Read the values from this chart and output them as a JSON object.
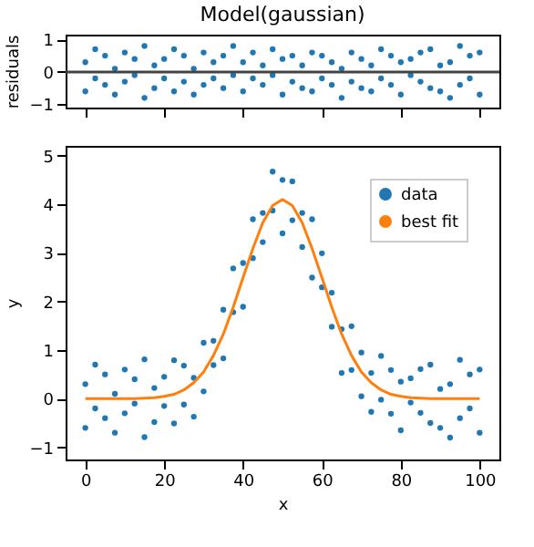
{
  "chart_data": [
    {
      "type": "scatter",
      "title": "Model(gaussian)",
      "ylabel": "residuals",
      "marker": "circle",
      "grid": false,
      "tick_labels": "y",
      "x": [
        0,
        0,
        2.5,
        2.5,
        5,
        5,
        7.5,
        7.5,
        10,
        10,
        12.5,
        12.5,
        15,
        15,
        17.5,
        17.5,
        20,
        20,
        22.5,
        22.5,
        25,
        25,
        27.5,
        27.5,
        30,
        30,
        32.5,
        32.5,
        35,
        35,
        37.5,
        37.5,
        40,
        40,
        42.5,
        42.5,
        45,
        45,
        47.5,
        47.5,
        50,
        50,
        52.5,
        52.5,
        55,
        55,
        57.5,
        57.5,
        60,
        60,
        62.5,
        62.5,
        65,
        65,
        67.5,
        67.5,
        70,
        70,
        72.5,
        72.5,
        75,
        75,
        77.5,
        77.5,
        80,
        80,
        82.5,
        82.5,
        85,
        85,
        87.5,
        87.5,
        90,
        90,
        92.5,
        92.5,
        95,
        95,
        97.5,
        97.5,
        100,
        100
      ],
      "series": [
        {
          "color": "#1f77b4",
          "values": [
            0.3,
            -0.6,
            -0.2,
            0.7,
            0.5,
            -0.4,
            -0.7,
            0.1,
            0.6,
            -0.3,
            -0.1,
            0.4,
            0.8,
            -0.8,
            -0.5,
            0.2,
            0.4,
            -0.2,
            0.7,
            -0.6,
            -0.3,
            0.5,
            0.1,
            -0.7,
            0.6,
            -0.4,
            -0.2,
            0.3,
            0.5,
            -0.5,
            -0.1,
            0.8,
            0.3,
            -0.6,
            0.6,
            -0.2,
            -0.4,
            0.2,
            0.7,
            -0.1,
            0.4,
            -0.7,
            -0.3,
            0.5,
            0.2,
            -0.5,
            -0.6,
            0.6,
            0.5,
            -0.2,
            -0.4,
            0.3,
            0.1,
            -0.8,
            0.6,
            -0.3,
            -0.5,
            0.4,
            0.2,
            -0.6,
            -0.2,
            0.7,
            0.5,
            -0.4,
            -0.7,
            0.3,
            0.4,
            -0.1,
            -0.3,
            0.6,
            0.7,
            -0.5,
            -0.6,
            0.2,
            0.3,
            -0.8,
            0.8,
            -0.4,
            -0.2,
            0.5,
            0.6,
            -0.7
          ]
        }
      ],
      "xlim": [
        -5,
        105
      ],
      "xticks": [
        {
          "value": 0,
          "label": null
        },
        {
          "value": 20,
          "label": null
        },
        {
          "value": 40,
          "label": null
        },
        {
          "value": 60,
          "label": null
        },
        {
          "value": 80,
          "label": null
        },
        {
          "value": 100,
          "label": null
        }
      ],
      "ylim": [
        -1.1,
        1.15
      ],
      "yticks": [
        -1,
        0,
        1
      ],
      "ref_lines": [
        {
          "axis": "y",
          "value": 0,
          "color": "#444444"
        }
      ]
    },
    {
      "type": "scatter",
      "xlabel": "x",
      "ylabel": "y",
      "legend": "top right",
      "grid": false,
      "series": [
        {
          "name": "data",
          "type": "scatter",
          "marker": "circle",
          "color": "#1f77b4",
          "x": [
            0,
            0,
            2.5,
            2.5,
            5,
            5,
            7.5,
            7.5,
            10,
            10,
            12.5,
            12.5,
            15,
            15,
            17.5,
            17.5,
            20,
            20,
            22.5,
            22.5,
            25,
            25,
            27.5,
            27.5,
            30,
            30,
            32.5,
            32.5,
            35,
            35,
            37.5,
            37.5,
            40,
            40,
            42.5,
            42.5,
            45,
            45,
            47.5,
            47.5,
            50,
            50,
            52.5,
            52.5,
            55,
            55,
            57.5,
            57.5,
            60,
            60,
            62.5,
            62.5,
            65,
            65,
            67.5,
            67.5,
            70,
            70,
            72.5,
            72.5,
            75,
            75,
            77.5,
            77.5,
            80,
            80,
            82.5,
            82.5,
            85,
            85,
            87.5,
            87.5,
            90,
            90,
            92.5,
            92.5,
            95,
            95,
            97.5,
            97.5,
            100,
            100
          ],
          "values": [
            0.3,
            -0.6,
            -0.2,
            0.7,
            0.5,
            -0.4,
            -0.7,
            0.1,
            0.6,
            -0.3,
            -0.1,
            0.4,
            0.81,
            -0.79,
            -0.48,
            0.22,
            0.45,
            -0.15,
            0.79,
            -0.51,
            -0.12,
            0.68,
            0.43,
            -0.37,
            1.15,
            0.15,
            0.69,
            1.19,
            1.83,
            0.83,
            1.78,
            2.68,
            2.79,
            1.89,
            3.69,
            2.89,
            3.22,
            3.82,
            4.67,
            3.87,
            4.5,
            3.4,
            3.67,
            4.47,
            3.82,
            3.12,
            2.49,
            3.69,
            2.99,
            2.29,
            1.48,
            2.18,
            1.43,
            0.53,
            1.49,
            0.59,
            0.05,
            0.95,
            0.53,
            -0.27,
            -0.02,
            0.88,
            0.59,
            -0.31,
            -0.65,
            0.35,
            0.42,
            -0.08,
            -0.29,
            0.61,
            0.7,
            -0.5,
            -0.6,
            0.2,
            0.3,
            -0.8,
            0.8,
            -0.4,
            -0.2,
            0.5,
            0.6,
            -0.7
          ]
        },
        {
          "name": "best fit",
          "type": "line",
          "line_style": "solid",
          "color": "#ff7f0e",
          "x": [
            0,
            2.5,
            5,
            7.5,
            10,
            12.5,
            15,
            17.5,
            20,
            22.5,
            25,
            27.5,
            30,
            32.5,
            35,
            37.5,
            40,
            42.5,
            45,
            47.5,
            50,
            52.5,
            55,
            57.5,
            60,
            62.5,
            65,
            67.5,
            70,
            72.5,
            75,
            77.5,
            80,
            82.5,
            85,
            87.5,
            90,
            92.5,
            95,
            97.5,
            100
          ],
          "values": [
            0,
            0,
            0,
            0,
            0,
            0,
            0.01,
            0.02,
            0.05,
            0.09,
            0.18,
            0.33,
            0.55,
            0.89,
            1.33,
            1.88,
            2.49,
            3.09,
            3.62,
            3.97,
            4.1,
            3.97,
            3.62,
            3.09,
            2.49,
            1.88,
            1.33,
            0.89,
            0.55,
            0.33,
            0.18,
            0.09,
            0.05,
            0.02,
            0.01,
            0,
            0,
            0,
            0,
            0,
            0
          ]
        }
      ],
      "xlim": [
        -5,
        105
      ],
      "xticks": [
        0,
        20,
        40,
        60,
        80,
        100
      ],
      "ylim": [
        -1.25,
        5.2
      ],
      "yticks": [
        -1,
        0,
        1,
        2,
        3,
        4,
        5
      ]
    }
  ]
}
